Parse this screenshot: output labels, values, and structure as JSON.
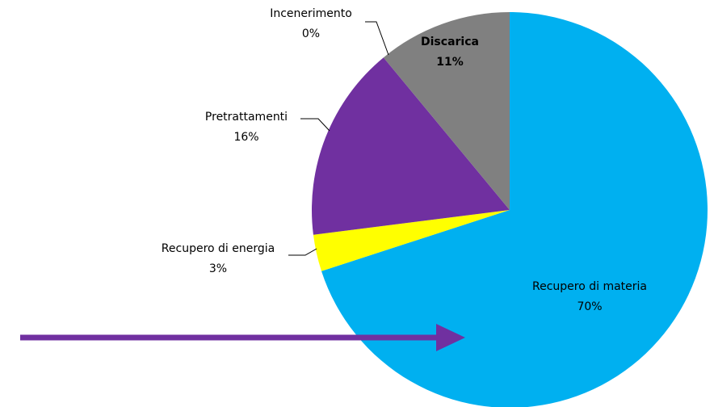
{
  "chart_data": {
    "type": "pie",
    "categories": [
      "Recupero di materia",
      "Recupero di energia",
      "Pretrattamenti",
      "Incenerimento",
      "Discarica"
    ],
    "values": [
      70,
      3,
      16,
      0,
      11
    ],
    "value_labels": [
      "70%",
      "3%",
      "16%",
      "0%",
      "11%"
    ],
    "colors": [
      "#00b0f0",
      "#ffff00",
      "#7030a0",
      "#c0504d",
      "#808080"
    ]
  }
}
